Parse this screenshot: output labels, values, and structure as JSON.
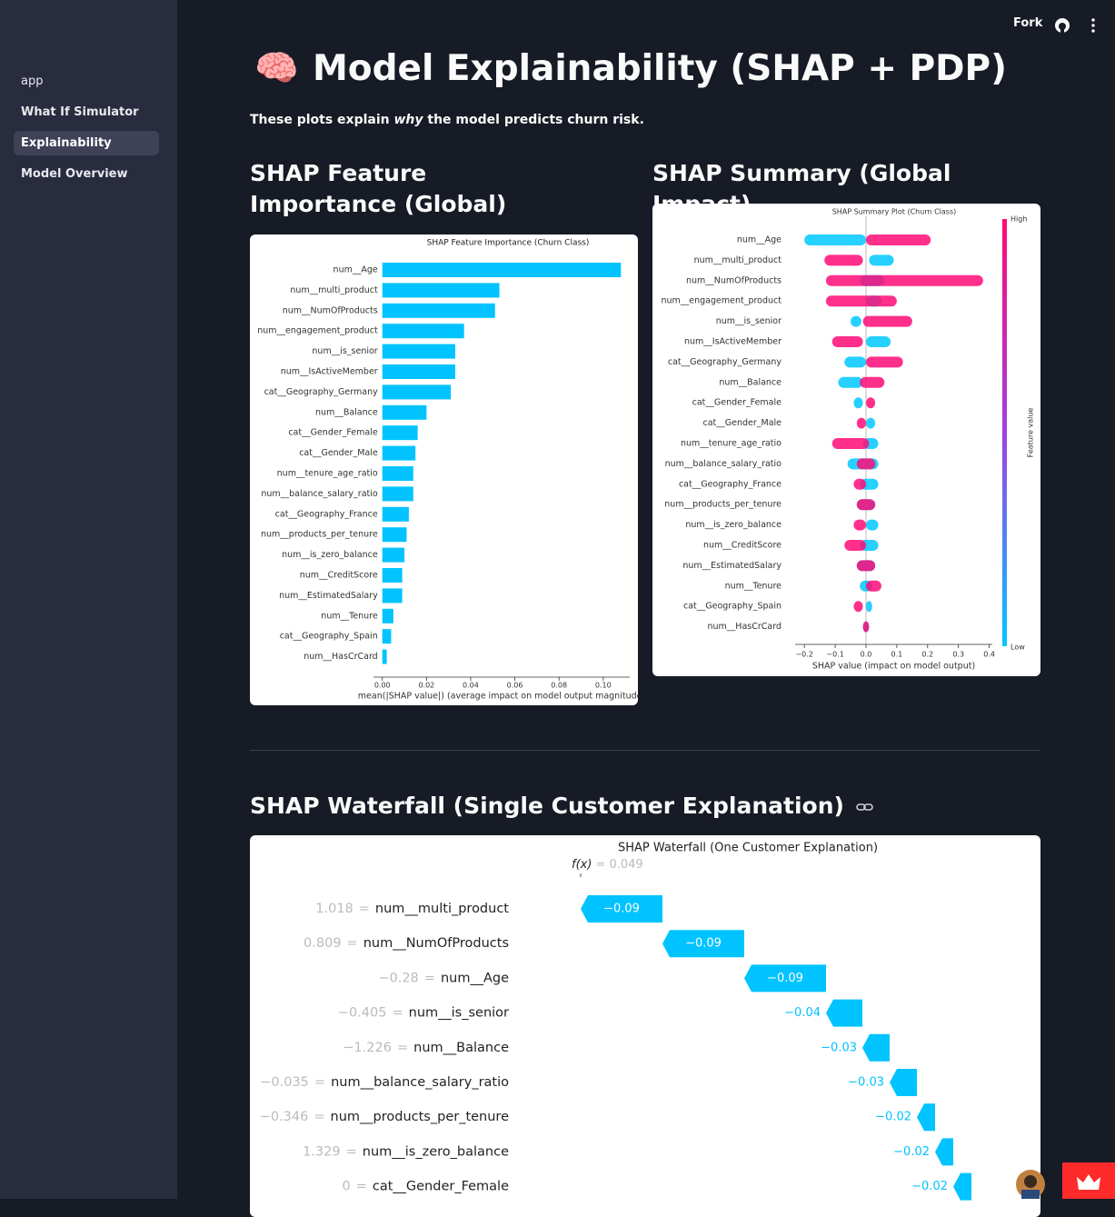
{
  "toolbar": {
    "fork": "Fork"
  },
  "sidebar": {
    "items": [
      "app",
      "What If Simulator",
      "Explainability",
      "Model Overview"
    ],
    "active": 2
  },
  "header": {
    "icon": "🧠",
    "title": "Model Explainability (SHAP + PDP)",
    "subtitle": [
      "These plots explain ",
      "why",
      " the model predicts churn risk."
    ]
  },
  "sections": [
    {
      "heading": "SHAP Feature Importance (Global)",
      "chart": {
        "type": "barh",
        "title": "SHAP Feature Importance (Churn Class)",
        "categories": [
          "num__Age",
          "num__multi_product",
          "num__NumOfProducts",
          "num__engagement_product",
          "num__is_senior",
          "num__IsActiveMember",
          "cat__Geography_Germany",
          "num__Balance",
          "cat__Gender_Female",
          "cat__Gender_Male",
          "num__tenure_age_ratio",
          "num__balance_salary_ratio",
          "cat__Geography_France",
          "num__products_per_tenure",
          "num__is_zero_balance",
          "num__CreditScore",
          "num__EstimatedSalary",
          "num__Tenure",
          "cat__Geography_Spain",
          "num__HasCrCard"
        ],
        "values": [
          0.108,
          0.053,
          0.051,
          0.037,
          0.033,
          0.033,
          0.031,
          0.02,
          0.016,
          0.015,
          0.014,
          0.014,
          0.012,
          0.011,
          0.01,
          0.009,
          0.009,
          0.005,
          0.004,
          0.002
        ],
        "color": "#00c3ff",
        "xlim": [
          -0.004,
          0.112
        ],
        "xticks": [
          {
            "value": 0,
            "label": "0.00"
          },
          {
            "value": 0.02,
            "label": "0.02"
          },
          {
            "value": 0.04,
            "label": "0.04"
          },
          {
            "value": 0.06,
            "label": "0.06"
          },
          {
            "value": 0.08,
            "label": "0.08"
          },
          {
            "value": 0.1,
            "label": "0.10"
          }
        ],
        "xlabel": "mean(|SHAP value|) (average impact on model output magnitude)"
      }
    },
    {
      "heading": "SHAP Summary (Global Impact)",
      "chart": {
        "type": "beeswarm",
        "title": "SHAP Summary Plot (Churn Class)",
        "categories": [
          "num__Age",
          "num__multi_product",
          "num__NumOfProducts",
          "num__engagement_product",
          "num__is_senior",
          "num__IsActiveMember",
          "cat__Geography_Germany",
          "num__Balance",
          "cat__Gender_Female",
          "cat__Gender_Male",
          "num__tenure_age_ratio",
          "num__balance_salary_ratio",
          "cat__Geography_France",
          "num__products_per_tenure",
          "num__is_zero_balance",
          "num__CreditScore",
          "num__EstimatedSalary",
          "num__Tenure",
          "cat__Geography_Spain",
          "num__HasCrCard"
        ],
        "low": [
          [
            -0.2,
            0.0
          ],
          [
            0.01,
            0.09
          ],
          [
            -0.02,
            0.06
          ],
          [
            0.0,
            0.05
          ],
          [
            -0.05,
            -0.015
          ],
          [
            0.0,
            0.08
          ],
          [
            -0.07,
            0.0
          ],
          [
            -0.09,
            -0.01
          ],
          [
            -0.04,
            -0.01
          ],
          [
            0.0,
            0.03
          ],
          [
            -0.01,
            0.04
          ],
          [
            -0.06,
            0.04
          ],
          [
            -0.02,
            0.04
          ],
          [
            -0.03,
            0.03
          ],
          [
            0.0,
            0.04
          ],
          [
            -0.02,
            0.04
          ],
          [
            -0.03,
            0.03
          ],
          [
            -0.02,
            0.02
          ],
          [
            0.0,
            0.02
          ],
          [
            -0.01,
            0.01
          ]
        ],
        "high": [
          [
            0.0,
            0.21
          ],
          [
            -0.135,
            -0.01
          ],
          [
            -0.13,
            0.38
          ],
          [
            -0.13,
            0.1
          ],
          [
            -0.01,
            0.15
          ],
          [
            -0.11,
            -0.01
          ],
          [
            0.0,
            0.12
          ],
          [
            -0.02,
            0.06
          ],
          [
            0.0,
            0.03
          ],
          [
            -0.03,
            0.0
          ],
          [
            -0.11,
            0.01
          ],
          [
            -0.03,
            0.03
          ],
          [
            -0.04,
            0.0
          ],
          [
            -0.03,
            0.03
          ],
          [
            -0.04,
            0.0
          ],
          [
            -0.07,
            0.0
          ],
          [
            -0.03,
            0.03
          ],
          [
            0.0,
            0.05
          ],
          [
            -0.04,
            -0.01
          ],
          [
            -0.01,
            0.01
          ]
        ],
        "colors": {
          "low": "#00c8ff",
          "high": "#ff0a78"
        },
        "xlim": [
          -0.23,
          0.41
        ],
        "xticks": [
          {
            "value": -0.2,
            "label": "−0.2"
          },
          {
            "value": -0.1,
            "label": "−0.1"
          },
          {
            "value": 0,
            "label": "0.0"
          },
          {
            "value": 0.1,
            "label": "0.1"
          },
          {
            "value": 0.2,
            "label": "0.2"
          },
          {
            "value": 0.3,
            "label": "0.3"
          },
          {
            "value": 0.4,
            "label": "0.4"
          }
        ],
        "xlabel": "SHAP value (impact on model output)",
        "colorbar": {
          "high": "High",
          "low": "Low",
          "label": "Feature value"
        }
      }
    },
    {
      "heading": "SHAP Waterfall (Single Customer Explanation)",
      "chart": {
        "type": "waterfall",
        "title": "SHAP Waterfall (One Customer Explanation)",
        "fx_label": "f(x)",
        "fx": 0.049,
        "fx_value_label": "= 0.049",
        "separator": "=",
        "categories": [
          "num__multi_product",
          "num__NumOfProducts",
          "num__Age",
          "num__is_senior",
          "num__Balance",
          "num__balance_salary_ratio",
          "num__products_per_tenure",
          "num__is_zero_balance",
          "cat__Gender_Female"
        ],
        "feature_values": [
          "1.018",
          "0.809",
          "−0.28",
          "−0.405",
          "−1.226",
          "−0.035",
          "−0.346",
          "1.329",
          "0"
        ],
        "values": [
          -0.09,
          -0.09,
          -0.09,
          -0.04,
          -0.03,
          -0.03,
          -0.02,
          -0.02,
          -0.02
        ],
        "value_labels": [
          "−0.09",
          "−0.09",
          "−0.09",
          "−0.04",
          "−0.03",
          "−0.03",
          "−0.02",
          "−0.02",
          "−0.02"
        ],
        "color": "#00c3ff",
        "xlim": [
          -0.01,
          0.55
        ]
      }
    }
  ]
}
